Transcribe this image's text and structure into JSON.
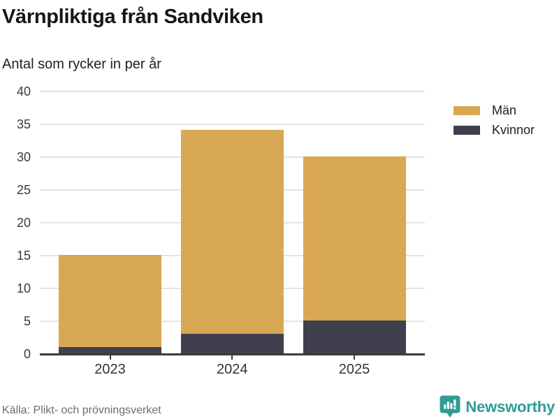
{
  "header": {
    "title": "Värnpliktiga från Sandviken",
    "subtitle": "Antal som rycker in per år"
  },
  "chart_data": {
    "type": "bar",
    "stacked": true,
    "title": "Värnpliktiga från Sandviken",
    "subtitle": "Antal som rycker in per år",
    "categories": [
      "2023",
      "2024",
      "2025"
    ],
    "series": [
      {
        "name": "Män",
        "values": [
          14,
          31,
          25
        ],
        "color": "#d9a854"
      },
      {
        "name": "Kvinnor",
        "values": [
          1,
          3,
          5
        ],
        "color": "#3f3f4e"
      }
    ],
    "stack_bottom_to_top": [
      "Kvinnor",
      "Män"
    ],
    "totals": [
      15,
      34,
      30
    ],
    "xlabel": "",
    "ylabel": "",
    "ylim": [
      0,
      40
    ],
    "ytick_step": 5,
    "grid": true,
    "legend_position": "top-right"
  },
  "footer": {
    "source": "Källa: Plikt- och prövningsverket",
    "brand": "Newsworthy"
  },
  "colors": {
    "man": "#d9a854",
    "kvinnor": "#3f3f4e",
    "gridline": "#e4e4e4",
    "axis": "#3b3b3b",
    "brand_teal": "#2f9d94",
    "source_text": "#6c6c75"
  }
}
